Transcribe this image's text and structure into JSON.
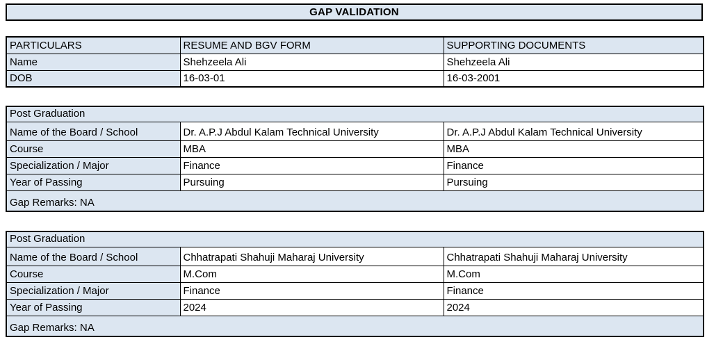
{
  "title": "GAP VALIDATION",
  "colors": {
    "accent": "#dce6f1",
    "border": "#000000",
    "background": "#ffffff"
  },
  "personal_table": {
    "headers": [
      "PARTICULARS",
      "RESUME AND BGV FORM",
      "SUPPORTING DOCUMENTS"
    ],
    "rows": [
      {
        "label": "Name",
        "resume": "Shehzeela Ali",
        "supporting": "Shehzeela Ali"
      },
      {
        "label": "DOB",
        "resume": "16-03-01",
        "supporting": "16-03-2001"
      }
    ]
  },
  "education_sections": [
    {
      "section_title": "Post Graduation",
      "rows": [
        {
          "label": "Name of the Board / School",
          "resume": "Dr. A.P.J Abdul Kalam Technical University",
          "supporting": "Dr. A.P.J Abdul Kalam Technical University"
        },
        {
          "label": "Course",
          "resume": "MBA",
          "supporting": "MBA"
        },
        {
          "label": "Specialization / Major",
          "resume": "Finance",
          "supporting": "Finance"
        },
        {
          "label": "Year of Passing",
          "resume": "Pursuing",
          "supporting": "Pursuing"
        }
      ],
      "gap_remarks": "Gap Remarks: NA"
    },
    {
      "section_title": "Post Graduation",
      "rows": [
        {
          "label": "Name of the Board / School",
          "resume": "Chhatrapati Shahuji Maharaj University",
          "supporting": "Chhatrapati Shahuji Maharaj University"
        },
        {
          "label": "Course",
          "resume": "M.Com",
          "supporting": "M.Com"
        },
        {
          "label": "Specialization / Major",
          "resume": "Finance",
          "supporting": "Finance"
        },
        {
          "label": "Year of Passing",
          "resume": "2024",
          "supporting": "2024"
        }
      ],
      "gap_remarks": "Gap Remarks: NA"
    }
  ]
}
